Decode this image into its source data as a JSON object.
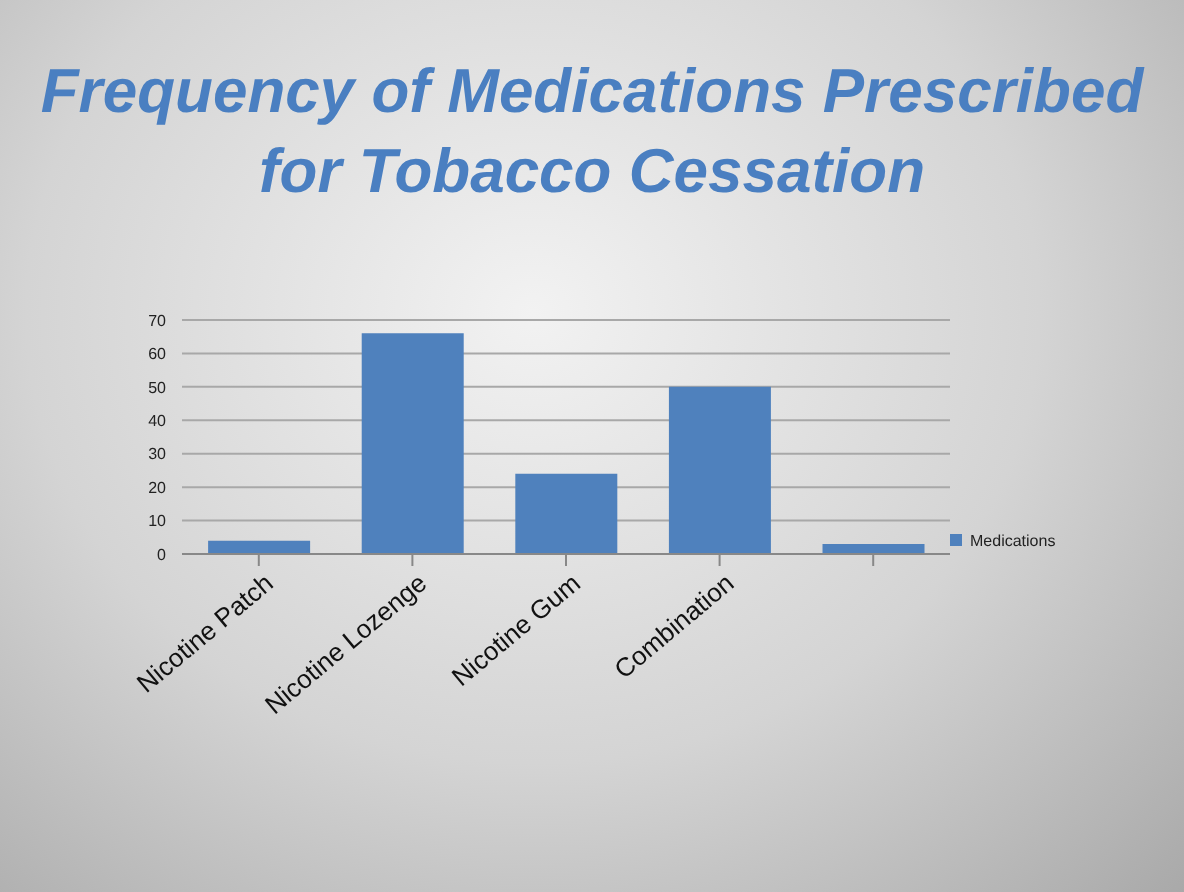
{
  "chart_data": {
    "type": "bar",
    "title": "Frequency of Medications Prescribed for Tobacco Cessation",
    "categories": [
      "Nicotine Patch",
      "Nicotine Lozenge",
      "Nicotine Gum",
      "Combination",
      null
    ],
    "series": [
      {
        "name": "Medications",
        "color": "#4f81bd",
        "values": [
          4,
          66,
          24,
          50,
          3
        ]
      }
    ],
    "ylim": [
      0,
      70
    ],
    "yticks": [
      0,
      10,
      20,
      30,
      40,
      50,
      60,
      70
    ],
    "grid": "y",
    "legend": "right"
  }
}
